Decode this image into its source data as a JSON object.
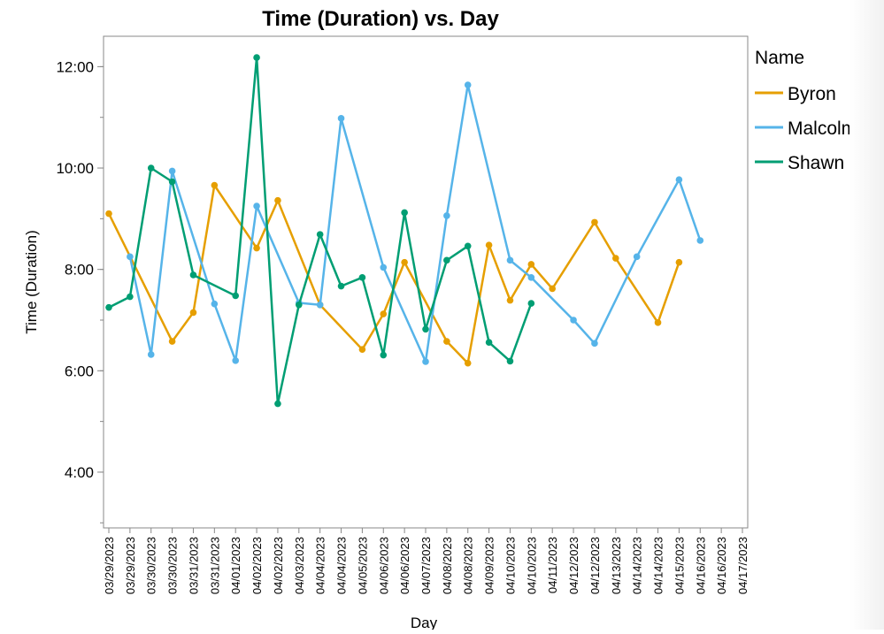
{
  "chart_data": {
    "type": "line",
    "title": "Time (Duration) vs. Day",
    "xlabel": "Day",
    "ylabel": "Time (Duration)",
    "x_tick_labels": [
      "03/29/2023",
      "03/29/2023",
      "03/30/2023",
      "03/30/2023",
      "03/31/2023",
      "03/31/2023",
      "04/01/2023",
      "04/02/2023",
      "04/02/2023",
      "04/03/2023",
      "04/04/2023",
      "04/04/2023",
      "04/05/2023",
      "04/06/2023",
      "04/06/2023",
      "04/07/2023",
      "04/08/2023",
      "04/08/2023",
      "04/09/2023",
      "04/10/2023",
      "04/10/2023",
      "04/11/2023",
      "04/12/2023",
      "04/12/2023",
      "04/13/2023",
      "04/14/2023",
      "04/14/2023",
      "04/15/2023",
      "04/16/2023",
      "04/16/2023",
      "04/17/2023"
    ],
    "y_unit": "hours",
    "y_ticks": [
      4,
      6,
      8,
      10,
      12
    ],
    "y_tick_labels": [
      "4:00",
      "6:00",
      "8:00",
      "10:00",
      "12:00"
    ],
    "ylim": [
      2.9,
      12.6
    ],
    "grid": false,
    "legend": {
      "title": "Name",
      "position": "right"
    },
    "series": [
      {
        "name": "Byron",
        "color": "#E69F00",
        "points": [
          [
            0,
            9.1
          ],
          [
            3,
            6.58
          ],
          [
            4,
            7.15
          ],
          [
            5,
            9.66
          ],
          [
            7,
            8.42
          ],
          [
            8,
            9.36
          ],
          [
            10,
            7.3
          ],
          [
            12,
            6.42
          ],
          [
            13,
            7.12
          ],
          [
            14,
            8.14
          ],
          [
            16,
            6.58
          ],
          [
            17,
            6.15
          ],
          [
            18,
            8.48
          ],
          [
            19,
            7.39
          ],
          [
            20,
            8.1
          ],
          [
            21,
            7.62
          ],
          [
            23,
            8.93
          ],
          [
            24,
            8.22
          ],
          [
            26,
            6.95
          ],
          [
            27,
            8.14
          ]
        ]
      },
      {
        "name": "Malcolm",
        "color": "#56B4E9",
        "points": [
          [
            1,
            8.25
          ],
          [
            2,
            6.32
          ],
          [
            3,
            9.94
          ],
          [
            5,
            7.32
          ],
          [
            6,
            6.2
          ],
          [
            7,
            9.25
          ],
          [
            9,
            7.34
          ],
          [
            10,
            7.3
          ],
          [
            11,
            10.98
          ],
          [
            13,
            8.04
          ],
          [
            15,
            6.18
          ],
          [
            16,
            9.06
          ],
          [
            17,
            11.64
          ],
          [
            19,
            8.18
          ],
          [
            20,
            7.84
          ],
          [
            22,
            7.0
          ],
          [
            23,
            6.54
          ],
          [
            25,
            8.25
          ],
          [
            27,
            9.77
          ],
          [
            28,
            8.57
          ]
        ]
      },
      {
        "name": "Shawn",
        "color": "#009E73",
        "points": [
          [
            0,
            7.25
          ],
          [
            1,
            7.46
          ],
          [
            2,
            10.0
          ],
          [
            3,
            9.73
          ],
          [
            4,
            7.89
          ],
          [
            6,
            7.48
          ],
          [
            7,
            12.18
          ],
          [
            8,
            5.35
          ],
          [
            9,
            7.3
          ],
          [
            10,
            8.69
          ],
          [
            11,
            7.67
          ],
          [
            12,
            7.84
          ],
          [
            13,
            6.31
          ],
          [
            14,
            9.12
          ],
          [
            15,
            6.82
          ],
          [
            16,
            8.18
          ],
          [
            17,
            8.46
          ],
          [
            18,
            6.56
          ],
          [
            19,
            6.19
          ],
          [
            20,
            7.33
          ]
        ]
      }
    ]
  }
}
